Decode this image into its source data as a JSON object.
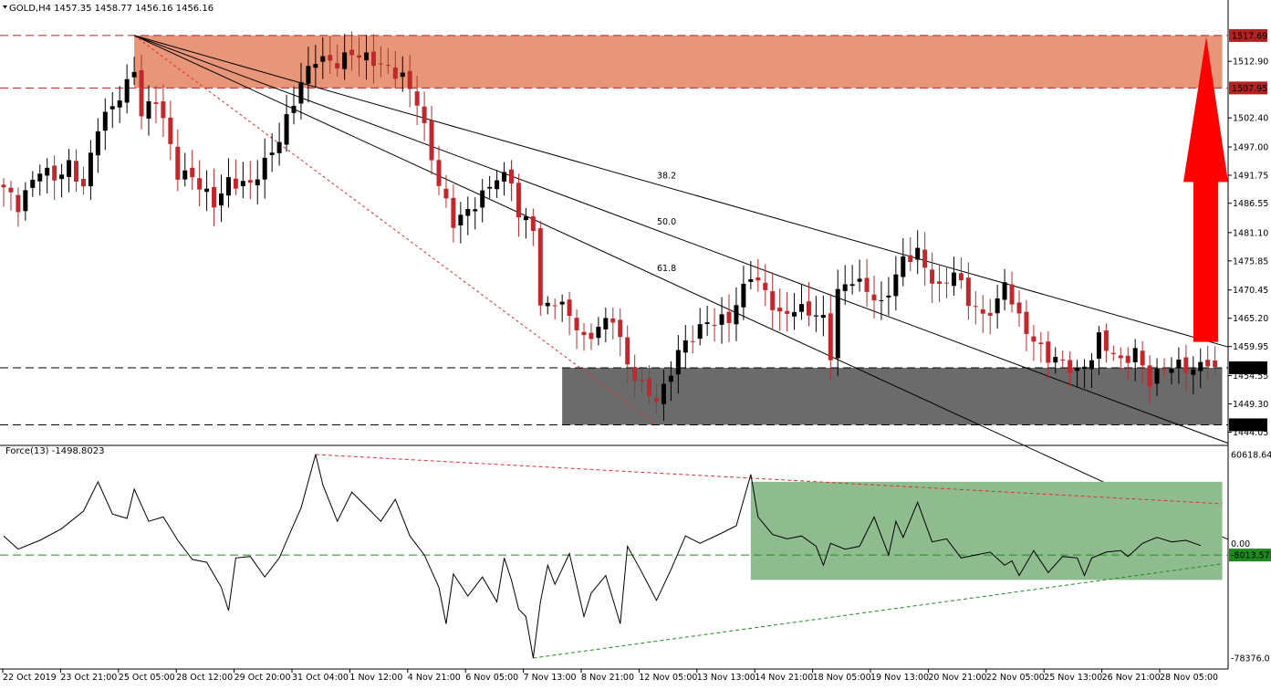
{
  "symbol_header": "GOLD,H4  1457.35 1458.77 1456.16 1456.16",
  "indicator_header": "Force(13) -1498.8023",
  "colors": {
    "bull_candle": "#000000",
    "bear_candle": "#c0282d",
    "resistance_zone": "#e8967a",
    "support_zone": "#6b6b6b",
    "indicator_zone": "#8fbc8f",
    "arrow": "#ff0000",
    "price_label_dark": "#000000",
    "price_label_red": "#b22222",
    "price_label_green": "#1e8a1e"
  },
  "chart_data": [
    {
      "type": "candlestick",
      "title": "GOLD,H4",
      "ylim": [
        1441.6,
        1521.4
      ],
      "yticks": [
        "1512.90",
        "1502.40",
        "1497.00",
        "1491.75",
        "1486.55",
        "1481.10",
        "1475.85",
        "1470.45",
        "1465.20",
        "1459.95",
        "1454.55",
        "1449.30",
        "1444.05"
      ],
      "price_labels": [
        {
          "text": "1517.69",
          "value": 1517.69,
          "style": "red"
        },
        {
          "text": "1507.95",
          "value": 1507.95,
          "style": "red"
        },
        {
          "text": "1456.01",
          "value": 1456.01,
          "style": "dark"
        },
        {
          "text": "1445.42",
          "value": 1445.42,
          "style": "dark"
        }
      ],
      "horizontal_levels": [
        1517.69,
        1507.95,
        1456.01,
        1445.42
      ],
      "zones": [
        {
          "name": "resistance-zone",
          "from_candle": 18,
          "to_candle": 168,
          "y_top": 1517.69,
          "y_bottom": 1507.95
        },
        {
          "name": "support-zone",
          "from_candle": 77,
          "to_candle": 168,
          "y_top": 1456.01,
          "y_bottom": 1445.42
        }
      ],
      "fibonacci_fan": {
        "origin": {
          "candle": 18,
          "price": 1517.69
        },
        "end": {
          "candle": 90,
          "price": 1445.42
        },
        "labels": [
          "38.2",
          "50.0",
          "61.8"
        ]
      },
      "x_labels": [
        "22 Oct 2019",
        "23 Oct 21:00",
        "25 Oct 05:00",
        "28 Oct 12:00",
        "29 Oct 20:00",
        "31 Oct 04:00",
        "1 Nov 12:00",
        "4 Nov 21:00",
        "6 Nov 05:00",
        "7 Nov 13:00",
        "8 Nov 21:00",
        "12 Nov 05:00",
        "13 Nov 13:00",
        "14 Nov 21:00",
        "18 Nov 05:00",
        "19 Nov 13:00",
        "20 Nov 21:00",
        "22 Nov 05:00",
        "25 Nov 13:00",
        "26 Nov 21:00",
        "28 Nov 05:00"
      ],
      "anchors": [
        [
          0,
          1489.5
        ],
        [
          2,
          1486.0
        ],
        [
          5,
          1493.0
        ],
        [
          7,
          1491.2
        ],
        [
          9,
          1493.5
        ],
        [
          11,
          1489.5
        ],
        [
          13,
          1501.0
        ],
        [
          15,
          1504.5
        ],
        [
          17,
          1508.5
        ],
        [
          18,
          1511.5
        ],
        [
          19,
          1503.0
        ],
        [
          21,
          1506.0
        ],
        [
          22,
          1502.0
        ],
        [
          24,
          1492.0
        ],
        [
          26,
          1491.5
        ],
        [
          29,
          1486.5
        ],
        [
          31,
          1490.5
        ],
        [
          34,
          1490.0
        ],
        [
          36,
          1494.0
        ],
        [
          38,
          1498.5
        ],
        [
          41,
          1509.0
        ],
        [
          43,
          1513.5
        ],
        [
          46,
          1512.5
        ],
        [
          48,
          1514.5
        ],
        [
          51,
          1513.0
        ],
        [
          55,
          1510.0
        ],
        [
          57,
          1505.5
        ],
        [
          60,
          1490.0
        ],
        [
          62,
          1483.0
        ],
        [
          64,
          1485.0
        ],
        [
          66,
          1488.0
        ],
        [
          68,
          1491.5
        ],
        [
          70,
          1491.0
        ],
        [
          71,
          1484.0
        ],
        [
          73,
          1482.5
        ],
        [
          74,
          1467.0
        ],
        [
          76,
          1468.5
        ],
        [
          78,
          1466.0
        ],
        [
          80,
          1461.0
        ],
        [
          82,
          1463.5
        ],
        [
          84,
          1465.5
        ],
        [
          86,
          1456.5
        ],
        [
          88,
          1452.5
        ],
        [
          90,
          1450.0
        ],
        [
          91,
          1452.0
        ],
        [
          93,
          1459.0
        ],
        [
          95,
          1462.0
        ],
        [
          97,
          1464.5
        ],
        [
          100,
          1465.0
        ],
        [
          103,
          1473.5
        ],
        [
          105,
          1470.0
        ],
        [
          107,
          1465.5
        ],
        [
          109,
          1467.0
        ],
        [
          111,
          1466.5
        ],
        [
          113,
          1465.0
        ],
        [
          114,
          1458.5
        ],
        [
          115,
          1470.0
        ],
        [
          117,
          1472.5
        ],
        [
          119,
          1470.5
        ],
        [
          121,
          1467.5
        ],
        [
          124,
          1476.0
        ],
        [
          126,
          1477.5
        ],
        [
          127,
          1474.5
        ],
        [
          129,
          1470.5
        ],
        [
          131,
          1474.0
        ],
        [
          133,
          1468.5
        ],
        [
          135,
          1465.5
        ],
        [
          137,
          1468.0
        ],
        [
          138,
          1472.0
        ],
        [
          140,
          1465.0
        ],
        [
          142,
          1461.0
        ],
        [
          144,
          1458.0
        ],
        [
          146,
          1457.0
        ],
        [
          148,
          1455.0
        ],
        [
          150,
          1458.0
        ],
        [
          151,
          1461.5
        ],
        [
          152,
          1460.0
        ],
        [
          154,
          1457.0
        ],
        [
          156,
          1459.0
        ],
        [
          158,
          1453.5
        ],
        [
          160,
          1456.0
        ],
        [
          162,
          1456.5
        ],
        [
          164,
          1455.5
        ],
        [
          166,
          1457.35
        ],
        [
          167,
          1456.16
        ]
      ],
      "last_ohlc": {
        "open": 1457.35,
        "high": 1458.77,
        "low": 1456.16,
        "close": 1456.16
      }
    },
    {
      "type": "line",
      "title": "Force(13) -1498.8023",
      "ylim": [
        -78376.0,
        60618.643
      ],
      "yticks": [
        "60618.643",
        "0.00",
        "-78376.01"
      ],
      "value_label": {
        "text": "-8013.5759",
        "value": -8013.5759
      },
      "zero_level": -8013.5759,
      "zone": {
        "from_candle": 103,
        "to_candle": 168,
        "y_top": 42000,
        "y_bottom": -25000
      },
      "trendlines": [
        {
          "color": "red",
          "from": [
            43,
            60618.643
          ],
          "to": [
            168,
            27000
          ]
        },
        {
          "color": "green",
          "from": [
            73,
            -78376.0
          ],
          "to": [
            168,
            -14000
          ]
        }
      ],
      "anchors": [
        [
          0,
          5000
        ],
        [
          2,
          -4000
        ],
        [
          5,
          2000
        ],
        [
          8,
          10000
        ],
        [
          11,
          22000
        ],
        [
          13,
          42000
        ],
        [
          15,
          20000
        ],
        [
          17,
          17000
        ],
        [
          18,
          37000
        ],
        [
          20,
          15000
        ],
        [
          22,
          18000
        ],
        [
          24,
          2000
        ],
        [
          26,
          -11000
        ],
        [
          28,
          -13000
        ],
        [
          30,
          -30000
        ],
        [
          31,
          -46000
        ],
        [
          32,
          -10000
        ],
        [
          34,
          -9000
        ],
        [
          36,
          -23000
        ],
        [
          38,
          -10000
        ],
        [
          40,
          13000
        ],
        [
          41,
          24000
        ],
        [
          43,
          60618.643
        ],
        [
          44,
          40000
        ],
        [
          46,
          15000
        ],
        [
          48,
          35000
        ],
        [
          50,
          25000
        ],
        [
          52,
          15000
        ],
        [
          54,
          30000
        ],
        [
          56,
          5000
        ],
        [
          58,
          -8000
        ],
        [
          60,
          -30000
        ],
        [
          61,
          -55000
        ],
        [
          62,
          -21000
        ],
        [
          64,
          -36000
        ],
        [
          66,
          -23000
        ],
        [
          68,
          -40000
        ],
        [
          69,
          -10000
        ],
        [
          70,
          -25000
        ],
        [
          71,
          -45000
        ],
        [
          72,
          -50000
        ],
        [
          73,
          -78376.0
        ],
        [
          74,
          -40000
        ],
        [
          75,
          -15000
        ],
        [
          76,
          -28000
        ],
        [
          78,
          -7000
        ],
        [
          80,
          -50000
        ],
        [
          81,
          -34000
        ],
        [
          83,
          -22000
        ],
        [
          85,
          -55000
        ],
        [
          86,
          -2000
        ],
        [
          88,
          -20000
        ],
        [
          90,
          -39000
        ],
        [
          92,
          -18000
        ],
        [
          94,
          5000
        ],
        [
          96,
          0
        ],
        [
          99,
          7000
        ],
        [
          101,
          12000
        ],
        [
          103,
          47000
        ],
        [
          104,
          18000
        ],
        [
          106,
          6000
        ],
        [
          108,
          3000
        ],
        [
          110,
          5000
        ],
        [
          112,
          -2000
        ],
        [
          113,
          -15000
        ],
        [
          114,
          0
        ],
        [
          116,
          -4000
        ],
        [
          118,
          -2000
        ],
        [
          120,
          18000
        ],
        [
          122,
          -8000
        ],
        [
          123,
          15000
        ],
        [
          124,
          4000
        ],
        [
          126,
          28000
        ],
        [
          128,
          1000
        ],
        [
          130,
          3000
        ],
        [
          132,
          -10000
        ],
        [
          134,
          -8000
        ],
        [
          136,
          -6000
        ],
        [
          138,
          -15000
        ],
        [
          139,
          -12000
        ],
        [
          140,
          -22000
        ],
        [
          142,
          -5000
        ],
        [
          144,
          -20000
        ],
        [
          146,
          -9000
        ],
        [
          148,
          -10000
        ],
        [
          149,
          -22000
        ],
        [
          150,
          -10000
        ],
        [
          152,
          -6000
        ],
        [
          154,
          -5000
        ],
        [
          155,
          -9000
        ],
        [
          157,
          0
        ],
        [
          159,
          4000
        ],
        [
          161,
          1000
        ],
        [
          163,
          2000
        ],
        [
          165,
          -1498.8023
        ]
      ]
    }
  ]
}
